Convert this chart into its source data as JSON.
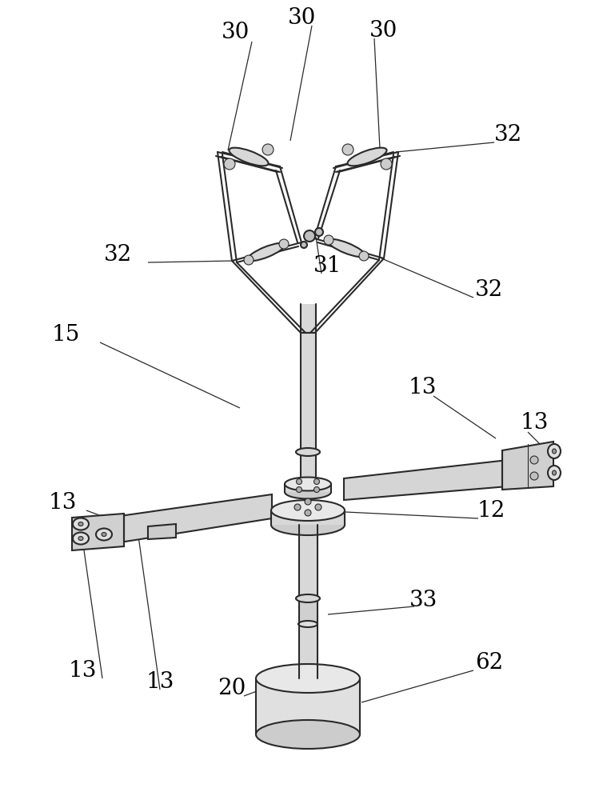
{
  "bg_color": "#ffffff",
  "line_color": "#2a2a2a",
  "fill_light": "#d8d8d8",
  "fill_mid": "#b0b0b0",
  "figsize": [
    7.59,
    10.0
  ],
  "dpi": 100,
  "label_fontsize": 20
}
